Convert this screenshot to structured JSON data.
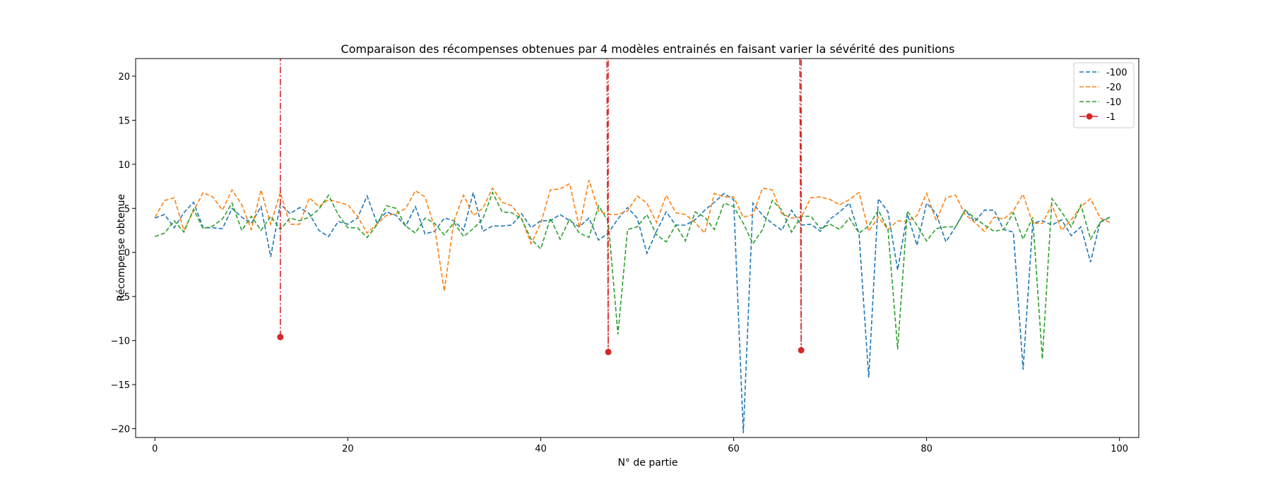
{
  "chart_data": {
    "type": "line",
    "title": "Comparaison des récompenses obtenues par 4 modèles entrainés en faisant varier la sévérité des punitions",
    "xlabel": "N° de partie",
    "ylabel": "Récompense obtenue",
    "xlim": [
      -2,
      102
    ],
    "ylim": [
      -21,
      22
    ],
    "xticks": [
      0,
      20,
      40,
      60,
      80,
      100
    ],
    "yticks": [
      -20,
      -15,
      -10,
      -5,
      0,
      5,
      10,
      15,
      20
    ],
    "legend_position": "top-right",
    "grid": false,
    "series": [
      {
        "name": "-100",
        "color": "#1f77b4",
        "style": "dashed",
        "x_start": 0,
        "values": [
          3.9,
          4.3,
          2.8,
          4.5,
          5.7,
          2.8,
          2.8,
          2.7,
          5.0,
          4.0,
          3.3,
          5.2,
          -0.5,
          5.5,
          4.4,
          5.1,
          4.4,
          2.5,
          1.8,
          3.5,
          3.2,
          3.9,
          6.4,
          3.4,
          4.6,
          4.2,
          3.0,
          5.2,
          2.1,
          2.4,
          3.9,
          3.6,
          2.5,
          6.8,
          2.4,
          3.0,
          3.0,
          3.1,
          4.4,
          2.8,
          3.6,
          3.6,
          4.3,
          3.6,
          2.9,
          3.9,
          1.4,
          2.2,
          3.8,
          5.1,
          3.9,
          -0.1,
          2.4,
          4.6,
          3.1,
          3.1,
          3.7,
          4.8,
          5.7,
          6.7,
          6.0,
          -20.5,
          5.6,
          4.2,
          3.3,
          2.5,
          4.8,
          3.1,
          3.2,
          2.4,
          3.8,
          4.6,
          5.6,
          2.1,
          -14.2,
          6.1,
          4.6,
          -2.0,
          4.4,
          0.8,
          5.6,
          4.4,
          1.2,
          2.9,
          4.8,
          3.5,
          4.8,
          4.8,
          2.6,
          2.3,
          -13.3,
          3.3,
          3.6,
          3.1,
          3.7,
          1.9,
          2.9,
          -1.1,
          3.5,
          4.0
        ]
      },
      {
        "name": "-20",
        "color": "#ff7f0e",
        "style": "dashed",
        "x_start": 0,
        "values": [
          4.0,
          5.9,
          6.2,
          2.5,
          4.7,
          6.8,
          6.3,
          4.8,
          7.1,
          5.4,
          2.6,
          7.1,
          3.2,
          6.8,
          3.2,
          3.2,
          6.2,
          5.2,
          6.0,
          5.7,
          5.4,
          4.1,
          2.2,
          3.2,
          4.2,
          4.4,
          5.0,
          7.0,
          6.3,
          2.8,
          -4.4,
          3.6,
          6.5,
          4.2,
          5.0,
          7.3,
          5.7,
          5.3,
          3.9,
          1.0,
          3.3,
          7.1,
          7.2,
          7.8,
          2.8,
          8.2,
          4.7,
          4.3,
          4.3,
          4.7,
          6.4,
          5.6,
          3.4,
          6.5,
          4.5,
          4.3,
          3.4,
          2.2,
          6.7,
          6.3,
          6.3,
          4.0,
          4.3,
          7.3,
          7.1,
          4.4,
          3.9,
          4.0,
          6.2,
          6.3,
          6.0,
          5.4,
          6.0,
          6.8,
          2.4,
          4.0,
          2.6,
          3.6,
          3.5,
          4.2,
          6.7,
          3.6,
          6.2,
          6.5,
          4.3,
          3.4,
          2.4,
          4.0,
          3.8,
          4.7,
          6.6,
          3.3,
          3.3,
          5.4,
          2.5,
          3.7,
          5.2,
          6.1,
          3.9,
          3.4
        ]
      },
      {
        "name": "-10",
        "color": "#2ca02c",
        "style": "dashed",
        "x_start": 0,
        "values": [
          1.8,
          2.2,
          3.6,
          2.3,
          4.9,
          2.7,
          3.0,
          3.8,
          5.6,
          2.5,
          4.1,
          2.5,
          4.1,
          2.6,
          3.9,
          3.6,
          4.0,
          4.9,
          6.5,
          4.3,
          2.8,
          2.8,
          1.7,
          3.1,
          5.3,
          5.0,
          3.0,
          2.2,
          3.9,
          3.3,
          2.0,
          3.4,
          1.8,
          2.7,
          3.8,
          6.8,
          4.6,
          4.5,
          3.8,
          1.5,
          0.4,
          3.9,
          1.5,
          3.8,
          2.2,
          1.7,
          5.3,
          3.5,
          -9.3,
          2.6,
          2.9,
          4.3,
          2.0,
          1.2,
          3.1,
          1.3,
          4.6,
          4.0,
          2.6,
          5.6,
          5.2,
          3.3,
          1.0,
          2.6,
          5.9,
          4.8,
          2.3,
          4.1,
          4.1,
          2.7,
          3.2,
          2.6,
          3.9,
          2.2,
          3.0,
          4.8,
          2.6,
          -11.0,
          4.7,
          3.1,
          1.3,
          2.7,
          2.9,
          2.9,
          4.8,
          3.9,
          3.1,
          2.4,
          2.6,
          4.5,
          1.5,
          4.0,
          -12.1,
          6.1,
          4.6,
          2.9,
          5.4,
          1.5,
          3.4,
          4.0
        ]
      },
      {
        "name": "-1",
        "color": "#d62728",
        "style": "dashdot",
        "marker": "circle",
        "points": [
          {
            "x": 13,
            "y": -9.6
          },
          {
            "x": 47,
            "y": -11.3
          },
          {
            "x": 67,
            "y": -11.1
          }
        ],
        "offscale_above_ylim": true
      }
    ]
  }
}
